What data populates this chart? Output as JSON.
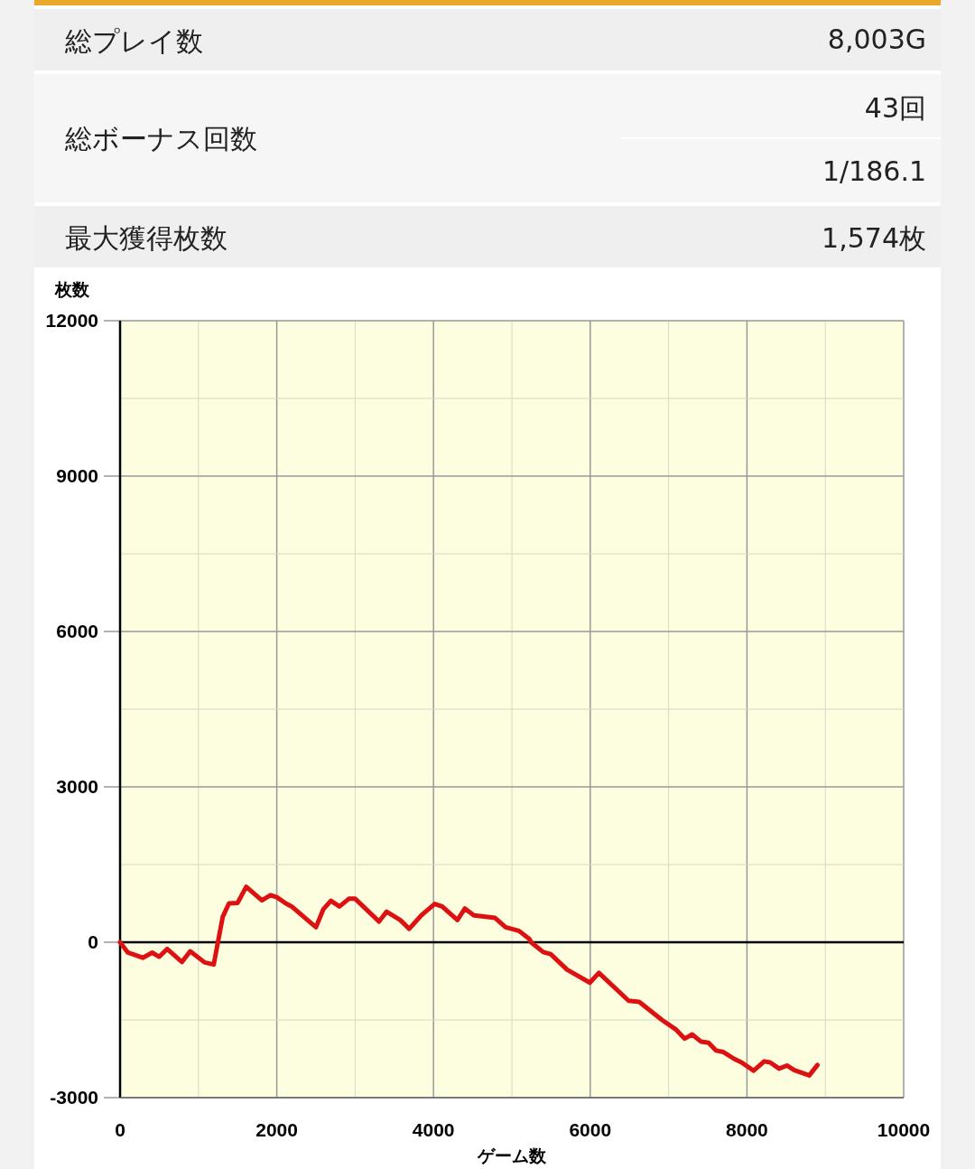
{
  "chart_data": {
    "type": "line",
    "xlabel": "ゲーム数",
    "ylabel": "枚数",
    "annotations": [
      "総プレイ数",
      "8,003G",
      "総ボーナス回数",
      "43回",
      "1/186.1",
      "最大獲得枚数",
      "1,574枚"
    ],
    "x": [
      0,
      100,
      290,
      410,
      500,
      600,
      790,
      895,
      1080,
      1195,
      1310,
      1390,
      1500,
      1610,
      1810,
      1920,
      2000,
      2115,
      2190,
      2500,
      2595,
      2690,
      2800,
      2920,
      3000,
      3305,
      3400,
      3575,
      3690,
      3845,
      4015,
      4110,
      4305,
      4400,
      4515,
      4785,
      4920,
      5090,
      5225,
      5245,
      5400,
      5495,
      5705,
      5995,
      6110,
      6490,
      6625,
      6915,
      7090,
      7205,
      7300,
      7415,
      7510,
      7605,
      7700,
      7835,
      7930,
      8085,
      8220,
      8295,
      8410,
      8510,
      8605,
      8795,
      8900
    ],
    "series": [
      {
        "color": "#dd1111",
        "values": [
          0,
          -200,
          -300,
          -200,
          -280,
          -130,
          -380,
          -175,
          -390,
          -430,
          490,
          750,
          760,
          1070,
          810,
          910,
          870,
          750,
          690,
          290,
          640,
          800,
          690,
          840,
          840,
          400,
          590,
          430,
          260,
          520,
          740,
          690,
          430,
          650,
          520,
          470,
          290,
          220,
          60,
          0,
          -190,
          -230,
          -530,
          -780,
          -590,
          -1130,
          -1150,
          -1500,
          -1680,
          -1860,
          -1780,
          -1920,
          -1940,
          -2090,
          -2120,
          -2250,
          -2320,
          -2480,
          -2300,
          -2320,
          -2440,
          -2380,
          -2470,
          -2570,
          -2370
        ]
      }
    ],
    "xlim": [
      0,
      10000
    ],
    "ylim": [
      -3000,
      12000
    ],
    "xticks": [
      0,
      {
        "value": 1000,
        "label": null
      },
      2000,
      {
        "value": 3000,
        "label": null
      },
      4000,
      {
        "value": 5000,
        "label": null
      },
      6000,
      {
        "value": 7000,
        "label": null
      },
      8000,
      {
        "value": 9000,
        "label": null
      },
      10000
    ],
    "yticks": [
      -3000,
      {
        "value": -1500,
        "label": null
      },
      0,
      {
        "value": 1500,
        "label": null
      },
      3000,
      {
        "value": 4500,
        "label": null
      },
      6000,
      {
        "value": 7500,
        "label": null
      },
      9000,
      {
        "value": 10500,
        "label": null
      },
      12000
    ],
    "ref_lines": [
      {
        "axis": "y",
        "value": 0,
        "color": "#000000"
      }
    ],
    "grid": true,
    "marker": "none",
    "line_style": "solid"
  }
}
